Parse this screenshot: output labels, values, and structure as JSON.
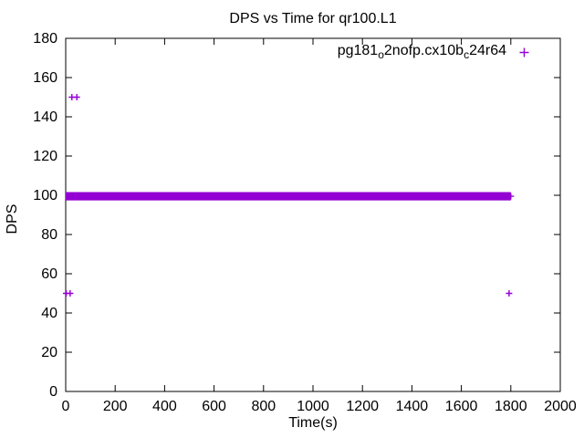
{
  "chart_data": {
    "type": "scatter",
    "title": "DPS vs Time for qr100.L1",
    "xlabel": "Time(s)",
    "ylabel": "DPS",
    "xlim": [
      0,
      2000
    ],
    "ylim": [
      0,
      180
    ],
    "xticks": [
      0,
      200,
      400,
      600,
      800,
      1000,
      1200,
      1400,
      1600,
      1800,
      2000
    ],
    "yticks": [
      0,
      20,
      40,
      60,
      80,
      100,
      120,
      140,
      160,
      180
    ],
    "grid": false,
    "legend_position": "top-right-inside",
    "series": [
      {
        "name": "pg181_o2nofp.cx10b_c24r64",
        "label_parts": [
          {
            "text": "pg181",
            "sub": false
          },
          {
            "text": "o",
            "sub": true
          },
          {
            "text": "2nofp.cx10b",
            "sub": false
          },
          {
            "text": "c",
            "sub": true
          },
          {
            "text": "24r64",
            "sub": false
          }
        ],
        "color": "#9400d3",
        "marker": "plus",
        "dense_band": {
          "x_start": 0,
          "x_end": 1800,
          "y_min": 99,
          "y_max": 100,
          "description": "dense overlapping plus markers, DPS ~99-100, from t=0 to t=1800"
        },
        "outliers": [
          [
            25,
            150
          ],
          [
            45,
            150
          ],
          [
            2,
            50
          ],
          [
            18,
            50
          ],
          [
            1793,
            50
          ]
        ]
      }
    ]
  }
}
